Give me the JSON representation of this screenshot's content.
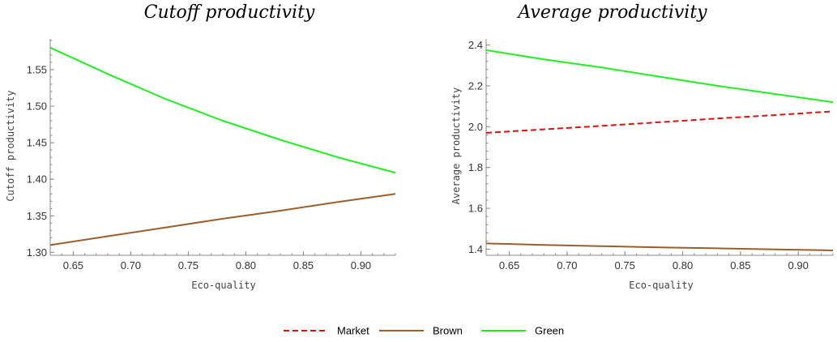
{
  "chart_data": [
    {
      "type": "line",
      "title": "Cutoff productivity",
      "xlabel": "Eco-quality",
      "ylabel": "Cutoff productivity",
      "xlim": [
        0.63,
        0.93
      ],
      "ylim": [
        1.296,
        1.592
      ],
      "x_ticks": [
        "0.65",
        "0.70",
        "0.75",
        "0.80",
        "0.85",
        "0.90"
      ],
      "y_ticks": [
        "1.30",
        "1.35",
        "1.40",
        "1.45",
        "1.50",
        "1.55"
      ],
      "series": [
        {
          "name": "Brown",
          "color": "#9b5f2d",
          "x": [
            0.63,
            0.68,
            0.73,
            0.78,
            0.83,
            0.88,
            0.93
          ],
          "y": [
            1.31,
            1.322,
            1.334,
            1.346,
            1.357,
            1.369,
            1.38
          ]
        },
        {
          "name": "Green",
          "color": "#22ee22",
          "x": [
            0.63,
            0.68,
            0.73,
            0.78,
            0.83,
            0.88,
            0.93
          ],
          "y": [
            1.58,
            1.544,
            1.51,
            1.48,
            1.454,
            1.43,
            1.409
          ]
        }
      ]
    },
    {
      "type": "line",
      "title": "Average productivity",
      "xlabel": "Eco-quality",
      "ylabel": "Average productivity",
      "xlim": [
        0.63,
        0.93
      ],
      "ylim": [
        1.37,
        2.43
      ],
      "x_ticks": [
        "0.65",
        "0.70",
        "0.75",
        "0.80",
        "0.85",
        "0.90"
      ],
      "y_ticks": [
        "1.4",
        "1.6",
        "1.8",
        "2.0",
        "2.2",
        "2.4"
      ],
      "series": [
        {
          "name": "Market",
          "color": "#dd1111",
          "dashed": true,
          "x": [
            0.63,
            0.68,
            0.73,
            0.78,
            0.83,
            0.88,
            0.93
          ],
          "y": [
            1.97,
            1.987,
            2.004,
            2.022,
            2.04,
            2.057,
            2.075
          ]
        },
        {
          "name": "Brown",
          "color": "#9b5f2d",
          "x": [
            0.63,
            0.68,
            0.73,
            0.78,
            0.83,
            0.88,
            0.93
          ],
          "y": [
            1.428,
            1.421,
            1.415,
            1.409,
            1.404,
            1.399,
            1.394
          ]
        },
        {
          "name": "Green",
          "color": "#22ee22",
          "x": [
            0.63,
            0.68,
            0.73,
            0.78,
            0.83,
            0.88,
            0.93
          ],
          "y": [
            2.375,
            2.33,
            2.29,
            2.245,
            2.2,
            2.16,
            2.12
          ]
        }
      ]
    }
  ],
  "legend": {
    "position": "bottom-center",
    "entries": [
      {
        "name": "Market",
        "color": "#dd1111",
        "dashed": true
      },
      {
        "name": "Brown",
        "color": "#9b5f2d",
        "dashed": false
      },
      {
        "name": "Green",
        "color": "#22ee22",
        "dashed": false
      }
    ]
  }
}
